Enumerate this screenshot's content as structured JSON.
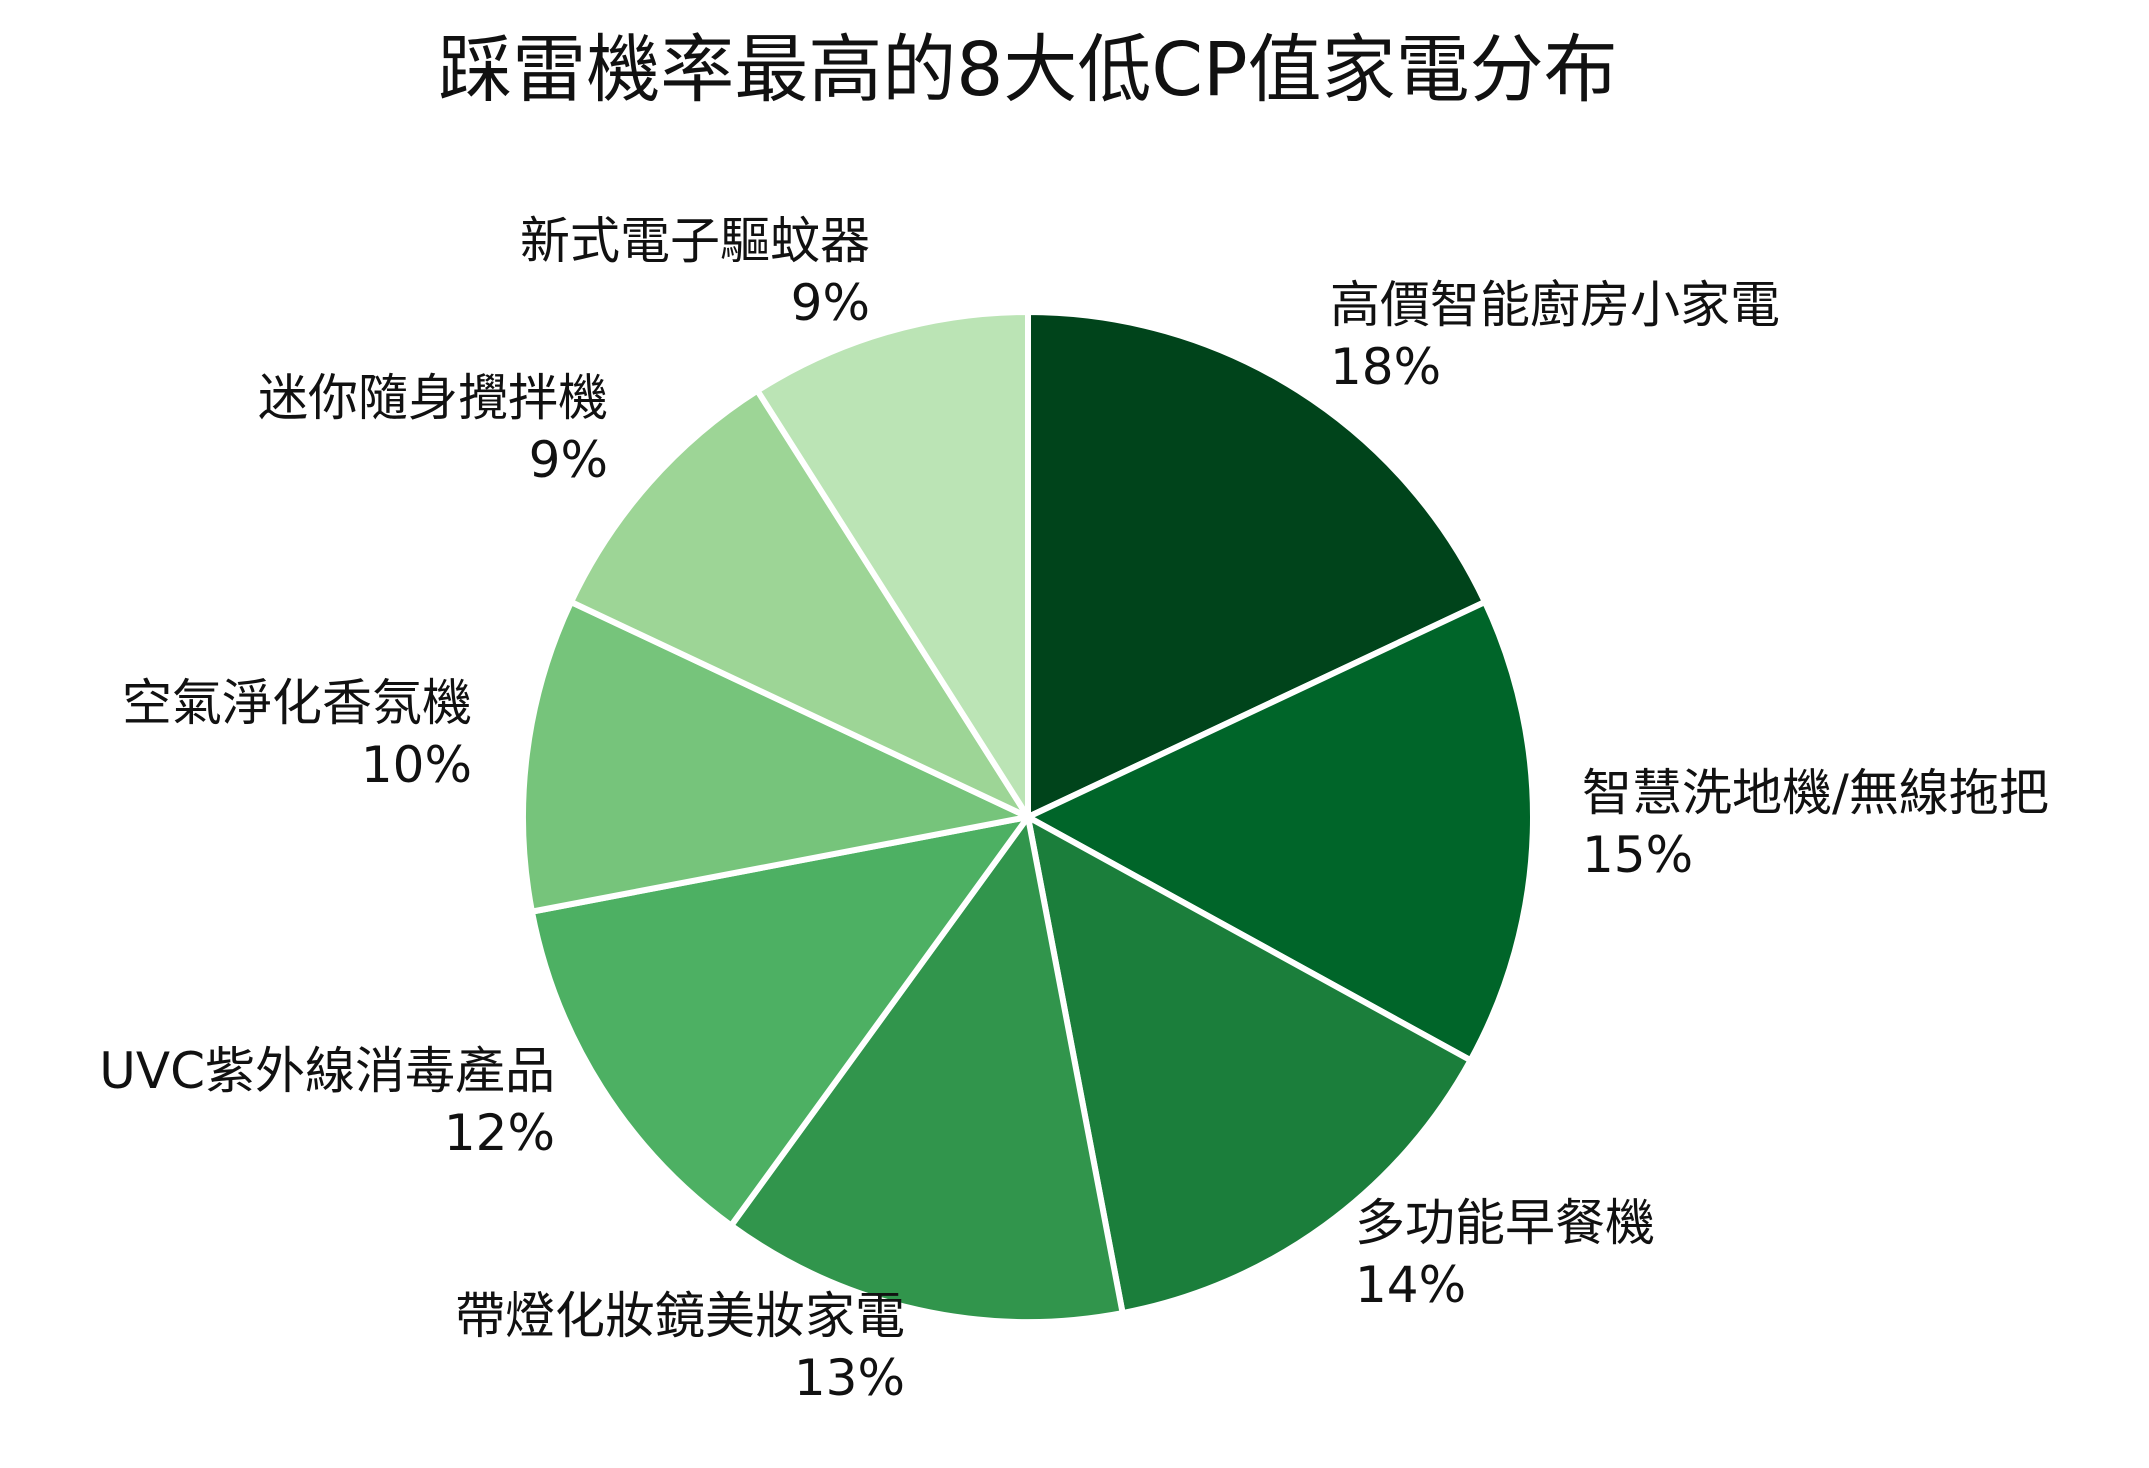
{
  "chart_data": {
    "type": "pie",
    "title": "踩雷機率最高的8大低CP值家電分布",
    "start_angle_deg": 0,
    "direction": "clockwise",
    "slices": [
      {
        "label": "高價智能廚房小家電",
        "value": 18,
        "value_label": "18%",
        "color": "#00441b"
      },
      {
        "label": "智慧洗地機/無線拖把",
        "value": 15,
        "value_label": "15%",
        "color": "#006529"
      },
      {
        "label": "多功能早餐機",
        "value": 14,
        "value_label": "14%",
        "color": "#1b7e3b"
      },
      {
        "label": "帶燈化妝鏡美妝家電",
        "value": 13,
        "value_label": "13%",
        "color": "#31954c"
      },
      {
        "label": "UVC紫外線消毒產品",
        "value": 12,
        "value_label": "12%",
        "color": "#4db063"
      },
      {
        "label": "空氣淨化香氛機",
        "value": 10,
        "value_label": "10%",
        "color": "#76c47b"
      },
      {
        "label": "迷你隨身攪拌機",
        "value": 9,
        "value_label": "9%",
        "color": "#9dd596"
      },
      {
        "label": "新式電子驅蚊器",
        "value": 9,
        "value_label": "9%",
        "color": "#bbe4b5"
      }
    ]
  }
}
